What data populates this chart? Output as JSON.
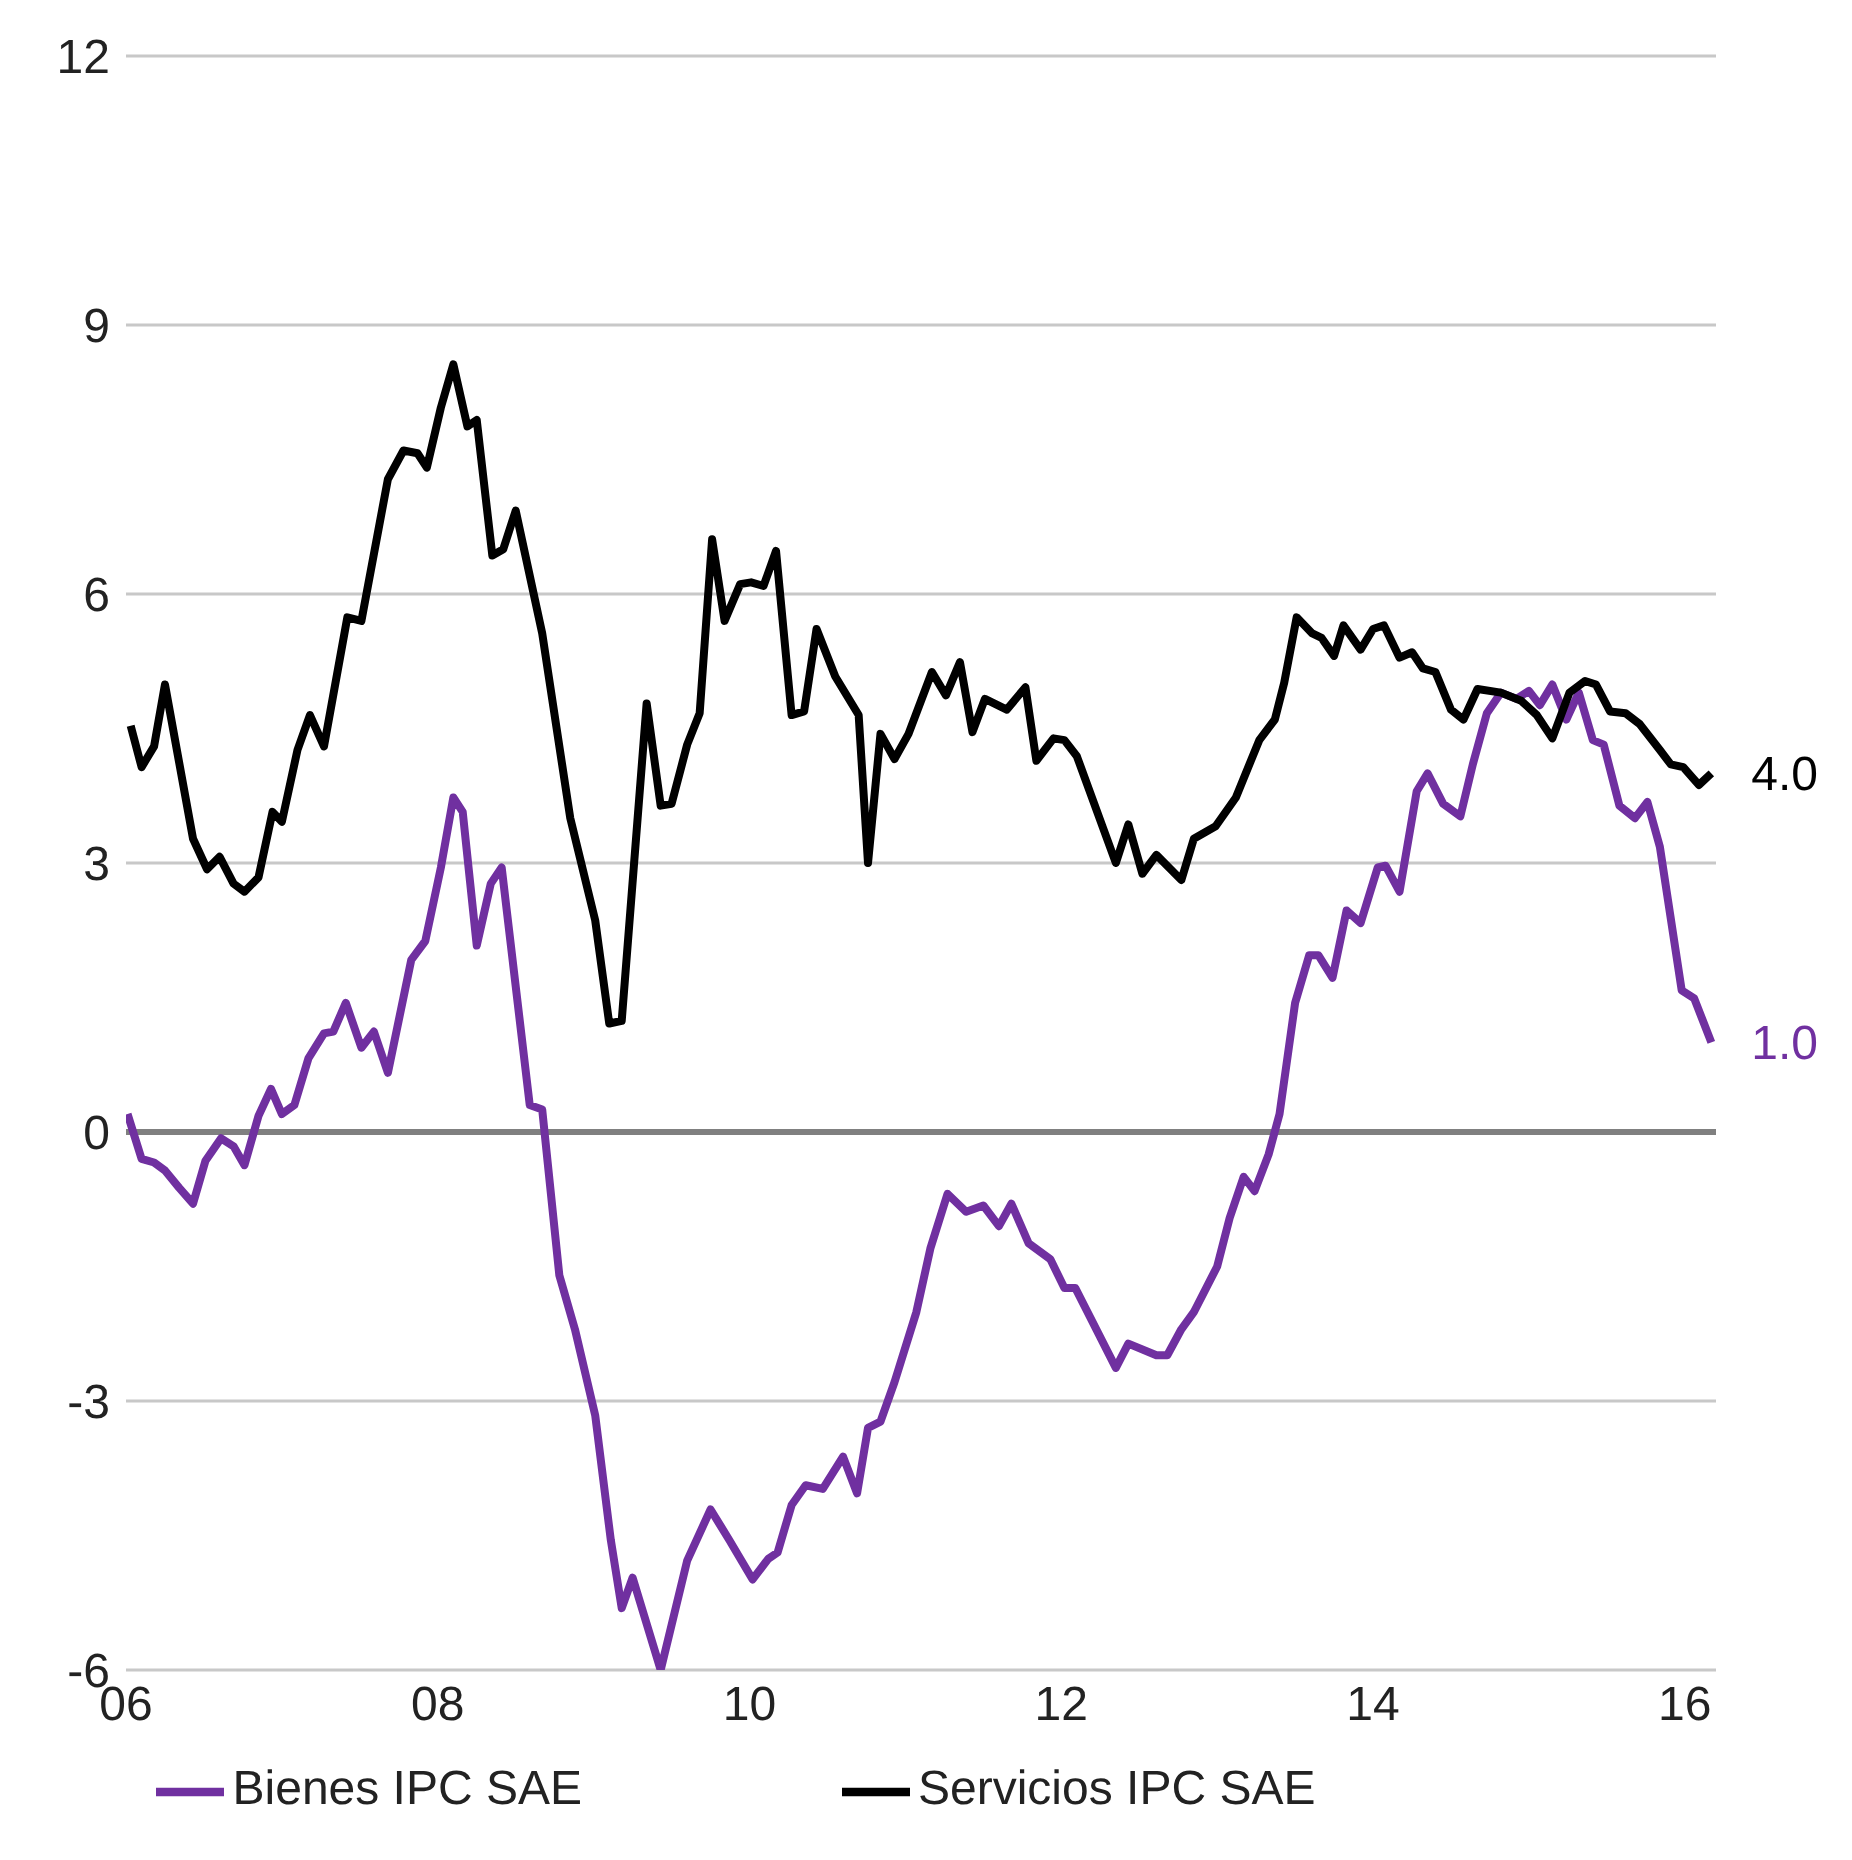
{
  "chart_data": {
    "type": "line",
    "xlim": [
      2006,
      2016.2
    ],
    "xticks": [
      {
        "value": 2006,
        "label": "06"
      },
      {
        "value": 2008,
        "label": "08"
      },
      {
        "value": 2010,
        "label": "10"
      },
      {
        "value": 2012,
        "label": "12"
      },
      {
        "value": 2014,
        "label": "14"
      },
      {
        "value": 2016,
        "label": "16"
      }
    ],
    "ylim": [
      -6,
      12
    ],
    "yticks": [
      -6,
      -3,
      0,
      3,
      6,
      9,
      12
    ],
    "grid": "y",
    "legend": "bottom",
    "marker": "none",
    "line_style": "solid",
    "ref_lines": [
      {
        "axis": "y",
        "value": 0,
        "color": "#808080"
      }
    ],
    "annotations": [
      {
        "text": "1.0",
        "x": 2016.17,
        "y": 1.0
      },
      {
        "text": "4.0",
        "x": 2016.17,
        "y": 4.0
      }
    ],
    "series": [
      {
        "name": "Bienes IPC SAE",
        "color": "#7030a0",
        "x": [
          2006.01,
          2006.1,
          2006.18,
          2006.25,
          2006.34,
          2006.43,
          2006.51,
          2006.61,
          2006.69,
          2006.76,
          2006.85,
          2006.93,
          2007.0,
          2007.08,
          2007.17,
          2007.27,
          2007.33,
          2007.41,
          2007.51,
          2007.59,
          2007.68,
          2007.83,
          2007.92,
          2008.02,
          2008.1,
          2008.16,
          2008.25,
          2008.34,
          2008.41,
          2008.59,
          2008.67,
          2008.78,
          2008.88,
          2009.01,
          2009.11,
          2009.18,
          2009.25,
          2009.43,
          2009.6,
          2009.75,
          2009.87,
          2010.02,
          2010.12,
          2010.18,
          2010.27,
          2010.36,
          2010.47,
          2010.6,
          2010.69,
          2010.76,
          2010.84,
          2010.93,
          2011.07,
          2011.16,
          2011.27,
          2011.39,
          2011.5,
          2011.6,
          2011.68,
          2011.79,
          2011.93,
          2012.02,
          2012.09,
          2012.35,
          2012.43,
          2012.61,
          2012.68,
          2012.77,
          2012.85,
          2013.0,
          2013.08,
          2013.17,
          2013.24,
          2013.33,
          2013.4,
          2013.5,
          2013.59,
          2013.65,
          2013.74,
          2013.83,
          2013.92,
          2014.03,
          2014.08,
          2014.17,
          2014.28,
          2014.35,
          2014.45,
          2014.56,
          2014.64,
          2014.73,
          2014.82,
          2014.92,
          2015.0,
          2015.07,
          2015.15,
          2015.24,
          2015.32,
          2015.41,
          2015.48,
          2015.58,
          2015.68,
          2015.76,
          2015.84,
          2015.98,
          2016.06,
          2016.17
        ],
        "values": [
          0.2,
          -0.3,
          -0.34,
          -0.43,
          -0.62,
          -0.8,
          -0.32,
          -0.07,
          -0.16,
          -0.37,
          0.18,
          0.48,
          0.2,
          0.3,
          0.82,
          1.1,
          1.12,
          1.44,
          0.94,
          1.12,
          0.66,
          1.92,
          2.13,
          2.95,
          3.73,
          3.57,
          2.08,
          2.77,
          2.95,
          0.3,
          0.25,
          -1.6,
          -2.2,
          -3.16,
          -4.55,
          -5.31,
          -4.97,
          -6.0,
          -4.78,
          -4.21,
          -4.55,
          -4.99,
          -4.76,
          -4.69,
          -4.16,
          -3.94,
          -3.98,
          -3.62,
          -4.03,
          -3.3,
          -3.23,
          -2.79,
          -2.01,
          -1.3,
          -0.69,
          -0.89,
          -0.82,
          -1.05,
          -0.8,
          -1.24,
          -1.42,
          -1.74,
          -1.74,
          -2.63,
          -2.36,
          -2.49,
          -2.49,
          -2.2,
          -2.01,
          -1.5,
          -0.96,
          -0.5,
          -0.66,
          -0.25,
          0.2,
          1.44,
          1.97,
          1.97,
          1.72,
          2.47,
          2.33,
          2.95,
          2.97,
          2.68,
          3.8,
          4.0,
          3.66,
          3.52,
          4.1,
          4.67,
          4.9,
          4.83,
          4.92,
          4.76,
          4.99,
          4.6,
          4.9,
          4.37,
          4.32,
          3.64,
          3.5,
          3.68,
          3.18,
          1.58,
          1.49,
          1.0
        ]
      },
      {
        "name": "Servicios IPC SAE",
        "color": "#000000",
        "x": [
          2006.03,
          2006.1,
          2006.18,
          2006.25,
          2006.43,
          2006.52,
          2006.6,
          2006.69,
          2006.76,
          2006.85,
          2006.94,
          2007.0,
          2007.1,
          2007.18,
          2007.27,
          2007.42,
          2007.51,
          2007.68,
          2007.78,
          2007.87,
          2007.93,
          2008.02,
          2008.1,
          2008.19,
          2008.25,
          2008.35,
          2008.42,
          2008.5,
          2008.67,
          2008.85,
          2009.01,
          2009.1,
          2009.18,
          2009.34,
          2009.43,
          2009.5,
          2009.6,
          2009.68,
          2009.76,
          2009.84,
          2009.94,
          2010.01,
          2010.09,
          2010.17,
          2010.27,
          2010.35,
          2010.43,
          2010.55,
          2010.7,
          2010.76,
          2010.84,
          2010.93,
          2011.02,
          2011.17,
          2011.26,
          2011.35,
          2011.43,
          2011.51,
          2011.65,
          2011.77,
          2011.84,
          2011.95,
          2012.02,
          2012.1,
          2012.35,
          2012.43,
          2012.52,
          2012.61,
          2012.77,
          2012.85,
          2012.99,
          2013.12,
          2013.27,
          2013.37,
          2013.43,
          2013.51,
          2013.61,
          2013.67,
          2013.75,
          2013.81,
          2013.92,
          2014.0,
          2014.07,
          2014.17,
          2014.25,
          2014.32,
          2014.4,
          2014.5,
          2014.58,
          2014.67,
          2014.82,
          2014.95,
          2015.05,
          2015.15,
          2015.26,
          2015.36,
          2015.43,
          2015.52,
          2015.62,
          2015.71,
          2015.84,
          2015.91,
          2015.99,
          2016.09,
          2016.17
        ],
        "values": [
          4.53,
          4.07,
          4.3,
          4.99,
          3.27,
          2.93,
          3.07,
          2.77,
          2.68,
          2.84,
          3.57,
          3.46,
          4.26,
          4.65,
          4.3,
          5.74,
          5.7,
          7.28,
          7.6,
          7.57,
          7.41,
          8.08,
          8.56,
          7.87,
          7.94,
          6.43,
          6.5,
          6.93,
          5.56,
          3.5,
          2.36,
          1.21,
          1.24,
          4.78,
          3.64,
          3.66,
          4.32,
          4.67,
          6.61,
          5.7,
          6.11,
          6.13,
          6.09,
          6.48,
          4.65,
          4.69,
          5.61,
          5.08,
          4.65,
          3.0,
          4.44,
          4.16,
          4.44,
          5.13,
          4.87,
          5.24,
          4.46,
          4.83,
          4.71,
          4.96,
          4.14,
          4.39,
          4.37,
          4.19,
          3.0,
          3.43,
          2.88,
          3.09,
          2.81,
          3.27,
          3.41,
          3.73,
          4.37,
          4.6,
          5.01,
          5.74,
          5.56,
          5.51,
          5.31,
          5.65,
          5.38,
          5.61,
          5.65,
          5.29,
          5.35,
          5.17,
          5.13,
          4.71,
          4.6,
          4.94,
          4.9,
          4.81,
          4.65,
          4.39,
          4.9,
          5.03,
          4.99,
          4.69,
          4.67,
          4.55,
          4.26,
          4.1,
          4.07,
          3.87,
          4.0
        ]
      }
    ]
  }
}
